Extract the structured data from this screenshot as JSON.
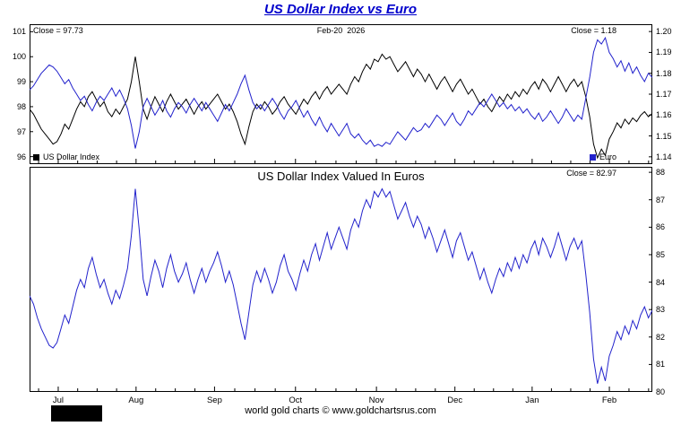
{
  "page": {
    "title": "US Dollar Index vs Euro",
    "footer": "world gold charts © www.goldchartsrus.com"
  },
  "x_axis": {
    "labels": [
      "Jul",
      "Aug",
      "Sep",
      "Oct",
      "Nov",
      "Dec",
      "Jan",
      "Feb"
    ],
    "fracs": [
      0.046,
      0.171,
      0.297,
      0.427,
      0.557,
      0.683,
      0.807,
      0.931
    ]
  },
  "chart_data": [
    {
      "type": "line",
      "panel": "top",
      "annotations": {
        "close_left": "Close = 97.73",
        "date": "Feb-20  2026",
        "close_right": "Close = 1.18"
      },
      "left_axis": {
        "title": "US Dollar Index",
        "min": 95.7,
        "max": 101.3,
        "ticks": [
          "96",
          "97",
          "98",
          "99",
          "100",
          "101"
        ]
      },
      "right_axis": {
        "title": "Euro",
        "min": 1.1365,
        "max": 1.2035,
        "ticks": [
          "1.14",
          "1.15",
          "1.16",
          "1.17",
          "1.18",
          "1.19",
          "1.20"
        ]
      },
      "series": [
        {
          "name": "US Dollar Index",
          "axis": "left",
          "color": "#000000",
          "values": [
            97.9,
            97.7,
            97.4,
            97.1,
            96.9,
            96.7,
            96.5,
            96.6,
            96.9,
            97.3,
            97.1,
            97.5,
            97.9,
            98.2,
            98.0,
            98.4,
            98.6,
            98.3,
            98.0,
            98.2,
            97.8,
            97.6,
            97.9,
            97.7,
            98.0,
            98.3,
            99.0,
            100.0,
            99.0,
            97.9,
            97.5,
            98.0,
            98.4,
            98.1,
            97.8,
            98.2,
            98.5,
            98.2,
            97.9,
            98.1,
            98.3,
            98.0,
            97.7,
            98.0,
            98.2,
            97.9,
            98.1,
            98.3,
            98.5,
            98.2,
            97.9,
            98.1,
            97.8,
            97.4,
            96.9,
            96.5,
            97.2,
            97.8,
            98.1,
            97.9,
            98.2,
            98.0,
            97.7,
            97.9,
            98.2,
            98.4,
            98.1,
            97.9,
            97.7,
            98.0,
            98.3,
            98.1,
            98.4,
            98.6,
            98.3,
            98.6,
            98.8,
            98.5,
            98.7,
            98.9,
            98.7,
            98.5,
            98.9,
            99.2,
            99.0,
            99.4,
            99.7,
            99.5,
            99.9,
            99.8,
            100.1,
            99.9,
            100.0,
            99.7,
            99.4,
            99.6,
            99.8,
            99.5,
            99.2,
            99.5,
            99.3,
            99.0,
            99.3,
            99.0,
            98.7,
            99.0,
            99.2,
            98.9,
            98.6,
            98.9,
            99.1,
            98.8,
            98.5,
            98.7,
            98.4,
            98.1,
            98.3,
            98.0,
            97.8,
            98.1,
            98.4,
            98.2,
            98.5,
            98.3,
            98.6,
            98.4,
            98.7,
            98.5,
            98.8,
            99.0,
            98.7,
            99.1,
            98.9,
            98.6,
            98.9,
            99.2,
            98.9,
            98.6,
            98.9,
            99.1,
            98.8,
            99.0,
            98.4,
            97.6,
            96.5,
            95.95,
            96.3,
            96.05,
            96.7,
            97.0,
            97.35,
            97.15,
            97.5,
            97.3,
            97.55,
            97.4,
            97.65,
            97.8,
            97.6,
            97.73
          ]
        },
        {
          "name": "Euro",
          "axis": "right",
          "color": "#2222cc",
          "values": [
            1.172,
            1.174,
            1.177,
            1.18,
            1.182,
            1.184,
            1.183,
            1.181,
            1.178,
            1.175,
            1.177,
            1.173,
            1.17,
            1.167,
            1.169,
            1.165,
            1.162,
            1.166,
            1.169,
            1.167,
            1.17,
            1.173,
            1.169,
            1.172,
            1.168,
            1.163,
            1.155,
            1.144,
            1.152,
            1.164,
            1.168,
            1.164,
            1.16,
            1.163,
            1.167,
            1.162,
            1.159,
            1.163,
            1.166,
            1.164,
            1.161,
            1.165,
            1.168,
            1.165,
            1.162,
            1.166,
            1.163,
            1.16,
            1.157,
            1.161,
            1.165,
            1.162,
            1.166,
            1.17,
            1.175,
            1.179,
            1.172,
            1.166,
            1.163,
            1.165,
            1.162,
            1.165,
            1.168,
            1.165,
            1.161,
            1.158,
            1.162,
            1.164,
            1.167,
            1.163,
            1.159,
            1.162,
            1.158,
            1.155,
            1.159,
            1.155,
            1.152,
            1.156,
            1.153,
            1.15,
            1.153,
            1.156,
            1.151,
            1.149,
            1.151,
            1.148,
            1.146,
            1.148,
            1.145,
            1.146,
            1.145,
            1.147,
            1.146,
            1.149,
            1.152,
            1.15,
            1.148,
            1.151,
            1.154,
            1.152,
            1.153,
            1.156,
            1.154,
            1.157,
            1.16,
            1.158,
            1.155,
            1.158,
            1.161,
            1.157,
            1.155,
            1.158,
            1.162,
            1.16,
            1.163,
            1.166,
            1.164,
            1.167,
            1.17,
            1.167,
            1.164,
            1.166,
            1.163,
            1.165,
            1.162,
            1.164,
            1.161,
            1.163,
            1.16,
            1.158,
            1.161,
            1.157,
            1.159,
            1.162,
            1.159,
            1.156,
            1.159,
            1.163,
            1.16,
            1.157,
            1.16,
            1.158,
            1.168,
            1.178,
            1.19,
            1.196,
            1.194,
            1.197,
            1.19,
            1.187,
            1.183,
            1.186,
            1.181,
            1.185,
            1.18,
            1.183,
            1.179,
            1.176,
            1.18,
            1.178
          ]
        }
      ]
    },
    {
      "type": "line",
      "panel": "bottom",
      "title": "US Dollar Index Valued In Euros",
      "annotations": {
        "close_right": "Close = 82.97"
      },
      "right_axis": {
        "min": 80,
        "max": 88.2,
        "ticks": [
          "80",
          "81",
          "82",
          "83",
          "84",
          "85",
          "86",
          "87",
          "88"
        ]
      },
      "series": [
        {
          "name": "US Dollar Index Valued In Euros",
          "axis": "right",
          "color": "#2222cc",
          "values": [
            83.5,
            83.2,
            82.7,
            82.3,
            82.0,
            81.7,
            81.6,
            81.8,
            82.3,
            82.8,
            82.5,
            83.1,
            83.7,
            84.1,
            83.8,
            84.5,
            84.9,
            84.3,
            83.8,
            84.1,
            83.6,
            83.2,
            83.7,
            83.4,
            83.9,
            84.5,
            85.7,
            87.4,
            85.9,
            84.1,
            83.5,
            84.2,
            84.8,
            84.4,
            83.8,
            84.5,
            85.0,
            84.4,
            84.0,
            84.3,
            84.7,
            84.1,
            83.6,
            84.1,
            84.5,
            84.0,
            84.4,
            84.7,
            85.1,
            84.6,
            84.0,
            84.4,
            83.9,
            83.2,
            82.5,
            81.9,
            82.9,
            83.9,
            84.4,
            84.0,
            84.5,
            84.1,
            83.6,
            84.0,
            84.6,
            85.0,
            84.4,
            84.1,
            83.7,
            84.3,
            84.8,
            84.4,
            85.0,
            85.4,
            84.8,
            85.3,
            85.8,
            85.2,
            85.6,
            86.0,
            85.6,
            85.2,
            85.9,
            86.3,
            86.0,
            86.6,
            87.0,
            86.7,
            87.3,
            87.1,
            87.4,
            87.1,
            87.3,
            86.8,
            86.3,
            86.6,
            86.9,
            86.4,
            86.0,
            86.4,
            86.1,
            85.6,
            86.0,
            85.6,
            85.1,
            85.5,
            85.9,
            85.4,
            84.9,
            85.5,
            85.8,
            85.3,
            84.8,
            85.1,
            84.6,
            84.1,
            84.5,
            84.0,
            83.6,
            84.1,
            84.5,
            84.2,
            84.7,
            84.4,
            84.9,
            84.5,
            85.0,
            84.7,
            85.2,
            85.5,
            85.0,
            85.6,
            85.3,
            84.9,
            85.3,
            85.8,
            85.3,
            84.8,
            85.3,
            85.6,
            85.2,
            85.5,
            84.3,
            82.9,
            81.2,
            80.3,
            80.9,
            80.4,
            81.3,
            81.7,
            82.2,
            81.9,
            82.4,
            82.1,
            82.6,
            82.3,
            82.8,
            83.1,
            82.7,
            82.97
          ]
        }
      ]
    }
  ]
}
